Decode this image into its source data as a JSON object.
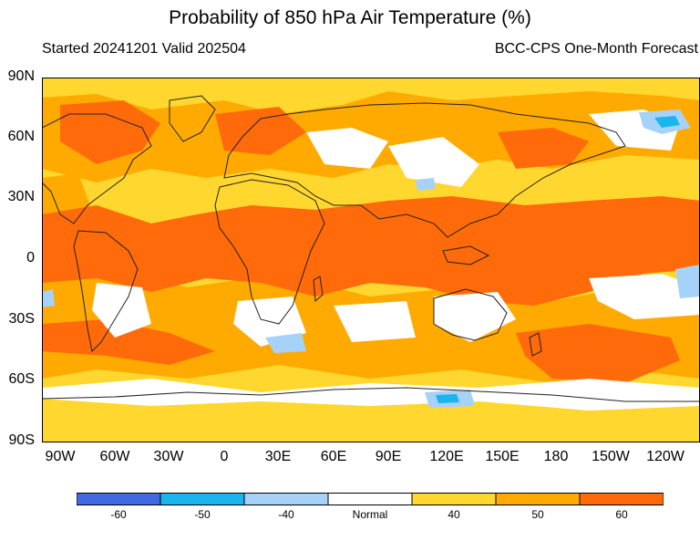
{
  "title": "Probability of 850 hPa Air Temperature (%)",
  "subtitle_left": "Started 20241201  Valid 202504",
  "subtitle_right": "BCC-CPS One-Month Forecast",
  "lat_labels": [
    "90N",
    "60N",
    "30N",
    "0",
    "30S",
    "60S",
    "90S"
  ],
  "lon_labels": [
    "90W",
    "60W",
    "30W",
    "0",
    "30E",
    "60E",
    "90E",
    "120E",
    "150E",
    "180",
    "150W",
    "120W"
  ],
  "colorbar": {
    "colors": [
      "#4169e1",
      "#1ab4ee",
      "#a6d2fa",
      "#ffffff",
      "#ffd72e",
      "#ffaa00",
      "#ff6a0a"
    ],
    "labels": [
      "-60",
      "-50",
      "-40",
      "Normal",
      "40",
      "50",
      "60"
    ]
  },
  "map_colors": {
    "ocean_background": "#ffd72e",
    "land_outline": "#222222"
  }
}
